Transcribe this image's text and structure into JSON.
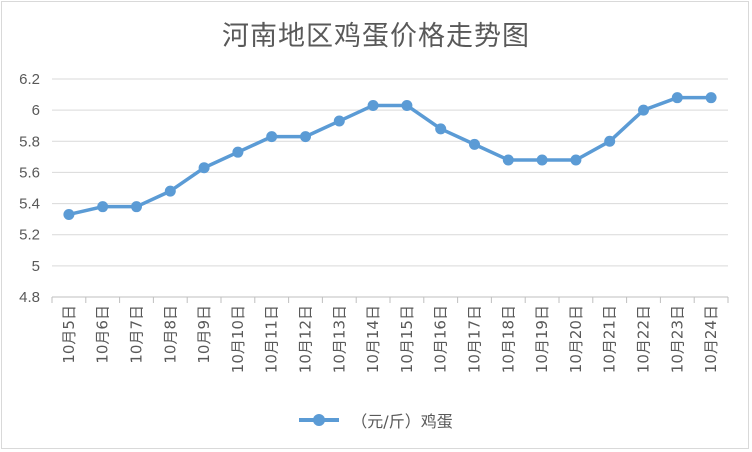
{
  "chart_data": {
    "type": "line",
    "title": "河南地区鸡蛋价格走势图",
    "categories": [
      "10月5日",
      "10月6日",
      "10月7日",
      "10月8日",
      "10月9日",
      "10月10日",
      "10月11日",
      "10月12日",
      "10月13日",
      "10月14日",
      "10月15日",
      "10月16日",
      "10月17日",
      "10月18日",
      "10月19日",
      "10月20日",
      "10月21日",
      "10月22日",
      "10月23日",
      "10月24日"
    ],
    "series": [
      {
        "name": "（元/斤）鸡蛋",
        "values": [
          5.33,
          5.38,
          5.38,
          5.48,
          5.63,
          5.73,
          5.83,
          5.83,
          5.93,
          6.03,
          6.03,
          5.88,
          5.78,
          5.68,
          5.68,
          5.68,
          5.8,
          6.0,
          6.08,
          6.08
        ],
        "color": "#5b9bd5"
      }
    ],
    "yticks": [
      "4.8",
      "5",
      "5.2",
      "5.4",
      "5.6",
      "5.8",
      "6",
      "6.2"
    ],
    "ylim": [
      4.8,
      6.2
    ],
    "xlabel": "",
    "ylabel": "",
    "grid": true,
    "legend_position": "bottom"
  }
}
